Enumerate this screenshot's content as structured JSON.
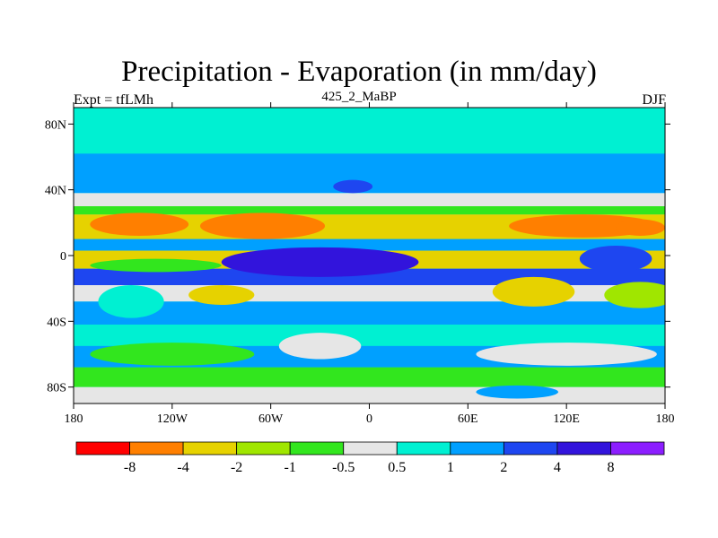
{
  "title": "Precipitation - Evaporation (in mm/day)",
  "subtitle_left": "Expt = tfLMh",
  "subtitle_center": "425_2_MaBP",
  "subtitle_right": "DJF",
  "axes": {
    "x_ticks": [
      {
        "value": -180,
        "label": "180"
      },
      {
        "value": -120,
        "label": "120W"
      },
      {
        "value": -60,
        "label": "60W"
      },
      {
        "value": 0,
        "label": "0"
      },
      {
        "value": 60,
        "label": "60E"
      },
      {
        "value": 120,
        "label": "120E"
      },
      {
        "value": 180,
        "label": "180"
      }
    ],
    "y_ticks": [
      {
        "value": 80,
        "label": "80N"
      },
      {
        "value": 40,
        "label": "40N"
      },
      {
        "value": 0,
        "label": "0"
      },
      {
        "value": -40,
        "label": "40S"
      },
      {
        "value": -80,
        "label": "80S"
      }
    ],
    "xlim": [
      -180,
      180
    ],
    "ylim": [
      -90,
      90
    ]
  },
  "colorbar": {
    "colors": [
      "#ff0000",
      "#ff7f00",
      "#e6d200",
      "#a0e600",
      "#32e61e",
      "#e6e6e6",
      "#00f0d2",
      "#00a0ff",
      "#1e46f0",
      "#3214dc",
      "#8c1eff"
    ],
    "labels": [
      "-8",
      "-4",
      "-2",
      "-1",
      "-0.5",
      "0.5",
      "1",
      "2",
      "4",
      "8"
    ]
  },
  "chart_data": {
    "type": "heatmap",
    "title": "Precipitation - Evaporation (in mm/day)",
    "xlim": [
      -180,
      180
    ],
    "ylim": [
      -90,
      90
    ],
    "levels": [
      -8,
      -4,
      -2,
      -1,
      -0.5,
      0.5,
      1,
      2,
      4,
      8
    ],
    "legend": "bottom"
  },
  "map": {
    "ocean_bg": "#00f0d2",
    "bands": [
      {
        "lat_top": 90,
        "lat_bottom": 62,
        "color": "#00f0d2"
      },
      {
        "lat_top": 62,
        "lat_bottom": 38,
        "color": "#00a0ff"
      },
      {
        "lat_top": 38,
        "lat_bottom": 30,
        "color": "#e6e6e6"
      },
      {
        "lat_top": 30,
        "lat_bottom": 25,
        "color": "#32e61e"
      },
      {
        "lat_top": 25,
        "lat_bottom": 10,
        "color": "#e6d200"
      },
      {
        "lat_top": 10,
        "lat_bottom": 3,
        "color": "#00a0ff"
      },
      {
        "lat_top": 3,
        "lat_bottom": -8,
        "color": "#e6d200"
      },
      {
        "lat_top": -8,
        "lat_bottom": -18,
        "color": "#1e46f0"
      },
      {
        "lat_top": -18,
        "lat_bottom": -28,
        "color": "#e6e6e6"
      },
      {
        "lat_top": -28,
        "lat_bottom": -42,
        "color": "#00a0ff"
      },
      {
        "lat_top": -42,
        "lat_bottom": -55,
        "color": "#00f0d2"
      },
      {
        "lat_top": -55,
        "lat_bottom": -68,
        "color": "#00a0ff"
      },
      {
        "lat_top": -68,
        "lat_bottom": -80,
        "color": "#32e61e"
      },
      {
        "lat_top": -80,
        "lat_bottom": -90,
        "color": "#e6e6e6"
      }
    ],
    "blobs": [
      {
        "lon": -140,
        "lat": 19,
        "rx": 30,
        "ry": 7,
        "color": "#ff7f00"
      },
      {
        "lon": -65,
        "lat": 18,
        "rx": 38,
        "ry": 8,
        "color": "#ff7f00"
      },
      {
        "lon": 130,
        "lat": 18,
        "rx": 45,
        "ry": 7,
        "color": "#ff7f00"
      },
      {
        "lon": 165,
        "lat": 17,
        "rx": 15,
        "ry": 5,
        "color": "#ff7f00"
      },
      {
        "lon": -130,
        "lat": -6,
        "rx": 40,
        "ry": 4,
        "color": "#32e61e"
      },
      {
        "lon": -30,
        "lat": -4,
        "rx": 60,
        "ry": 9,
        "color": "#3214dc"
      },
      {
        "lon": 150,
        "lat": -2,
        "rx": 22,
        "ry": 8,
        "color": "#1e46f0"
      },
      {
        "lon": 100,
        "lat": -22,
        "rx": 25,
        "ry": 9,
        "color": "#e6d200"
      },
      {
        "lon": 165,
        "lat": -24,
        "rx": 22,
        "ry": 8,
        "color": "#a0e600"
      },
      {
        "lon": -90,
        "lat": -24,
        "rx": 20,
        "ry": 6,
        "color": "#e6d200"
      },
      {
        "lon": -145,
        "lat": -28,
        "rx": 20,
        "ry": 10,
        "color": "#00f0d2"
      },
      {
        "lon": -10,
        "lat": 42,
        "rx": 12,
        "ry": 4,
        "color": "#1e46f0"
      },
      {
        "lon": 120,
        "lat": -60,
        "rx": 55,
        "ry": 7,
        "color": "#e6e6e6"
      },
      {
        "lon": -120,
        "lat": -60,
        "rx": 50,
        "ry": 7,
        "color": "#32e61e"
      },
      {
        "lon": -30,
        "lat": -55,
        "rx": 25,
        "ry": 8,
        "color": "#e6e6e6"
      },
      {
        "lon": 90,
        "lat": -83,
        "rx": 25,
        "ry": 4,
        "color": "#00a0ff"
      }
    ]
  }
}
